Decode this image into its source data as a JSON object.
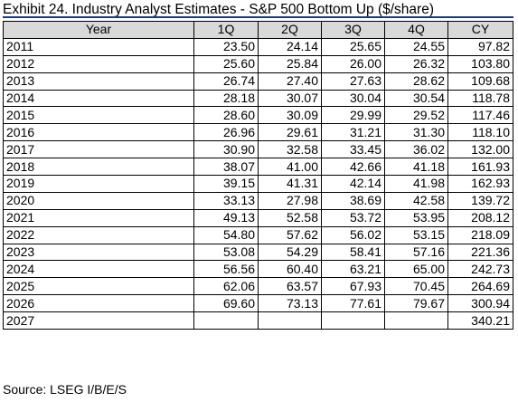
{
  "title": "Exhibit 24. Industry Analyst Estimates - S&P 500 Bottom Up ($/share)",
  "table": {
    "headers": [
      "Year",
      "1Q",
      "2Q",
      "3Q",
      "4Q",
      "CY"
    ],
    "rows": [
      [
        "2011",
        "23.50",
        "24.14",
        "25.65",
        "24.55",
        "97.82"
      ],
      [
        "2012",
        "25.60",
        "25.84",
        "26.00",
        "26.32",
        "103.80"
      ],
      [
        "2013",
        "26.74",
        "27.40",
        "27.63",
        "28.62",
        "109.68"
      ],
      [
        "2014",
        "28.18",
        "30.07",
        "30.04",
        "30.54",
        "118.78"
      ],
      [
        "2015",
        "28.60",
        "30.09",
        "29.99",
        "29.52",
        "117.46"
      ],
      [
        "2016",
        "26.96",
        "29.61",
        "31.21",
        "31.30",
        "118.10"
      ],
      [
        "2017",
        "30.90",
        "32.58",
        "33.45",
        "36.02",
        "132.00"
      ],
      [
        "2018",
        "38.07",
        "41.00",
        "42.66",
        "41.18",
        "161.93"
      ],
      [
        "2019",
        "39.15",
        "41.31",
        "42.14",
        "41.98",
        "162.93"
      ],
      [
        "2020",
        "33.13",
        "27.98",
        "38.69",
        "42.58",
        "139.72"
      ],
      [
        "2021",
        "49.13",
        "52.58",
        "53.72",
        "53.95",
        "208.12"
      ],
      [
        "2022",
        "54.80",
        "57.62",
        "56.02",
        "53.15",
        "218.09"
      ],
      [
        "2023",
        "53.08",
        "54.29",
        "58.41",
        "57.16",
        "221.36"
      ],
      [
        "2024",
        "56.56",
        "60.40",
        "63.21",
        "65.00",
        "242.73"
      ],
      [
        "2025",
        "62.06",
        "63.57",
        "67.93",
        "70.45",
        "264.69"
      ],
      [
        "2026",
        "69.60",
        "73.13",
        "77.61",
        "79.67",
        "300.94"
      ],
      [
        "2027",
        "",
        "",
        "",
        "",
        "340.21"
      ]
    ]
  },
  "source": "Source: LSEG I/B/E/S",
  "colors": {
    "header_bg": "#d9d9d9",
    "rule": "#1f3b73",
    "border": "#000000"
  }
}
